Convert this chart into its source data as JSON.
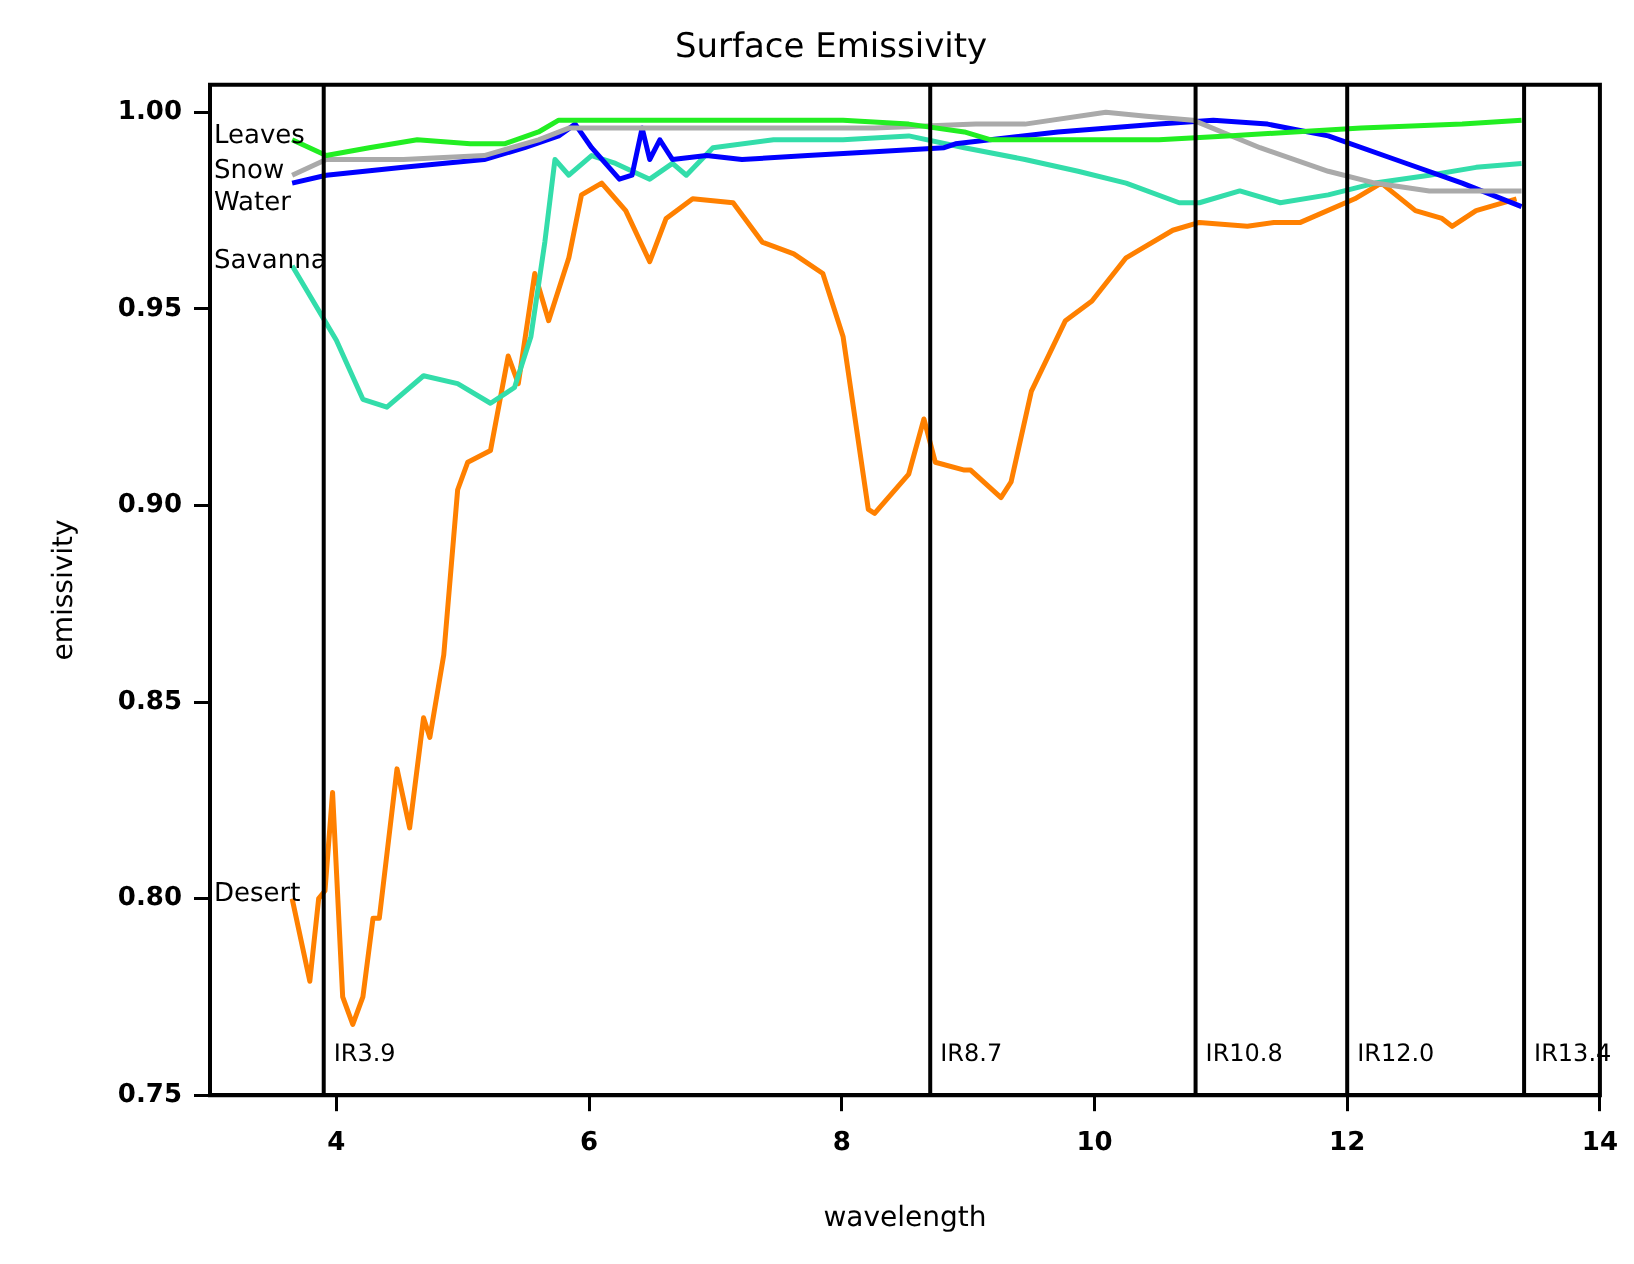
{
  "chart_data": {
    "type": "line",
    "title": "Surface Emissivity",
    "xlabel": "wavelength",
    "ylabel": "emissivity",
    "xlim": [
      3,
      14
    ],
    "xticks": [
      4,
      6,
      8,
      10,
      12,
      14
    ],
    "ylim": [
      0.75,
      1.007
    ],
    "yticks": [
      {
        "value": 0.75,
        "label": "0.75"
      },
      {
        "value": 0.8,
        "label": "0.80"
      },
      {
        "value": 0.85,
        "label": "0.85"
      },
      {
        "value": 0.9,
        "label": "0.90"
      },
      {
        "value": 0.95,
        "label": "0.95"
      },
      {
        "value": 1.0,
        "label": "1.00"
      }
    ],
    "grid": false,
    "legend": false,
    "marker": "none",
    "line_style": "solid",
    "series": [
      {
        "name": "Leaves",
        "color": "#22ee22",
        "x": [
          3.65,
          3.92,
          4.26,
          4.64,
          5.06,
          5.33,
          5.6,
          5.76,
          6.13,
          6.66,
          7.46,
          8.01,
          8.53,
          8.97,
          9.18,
          9.98,
          10.51,
          11.05,
          11.58,
          12.11,
          12.91,
          13.38
        ],
        "values": [
          0.993,
          0.989,
          0.991,
          0.993,
          0.992,
          0.992,
          0.995,
          0.998,
          0.998,
          0.998,
          0.998,
          0.998,
          0.997,
          0.995,
          0.993,
          0.993,
          0.993,
          0.994,
          0.995,
          0.996,
          0.997,
          0.998
        ]
      },
      {
        "name": "Snow",
        "color": "#aaaaaa",
        "x": [
          3.65,
          3.92,
          4.53,
          5.17,
          5.6,
          5.84,
          6.13,
          7.21,
          8.26,
          9.06,
          9.45,
          10.09,
          10.41,
          10.78,
          11.31,
          11.85,
          12.22,
          12.65,
          13.38
        ],
        "values": [
          0.984,
          0.988,
          0.988,
          0.989,
          0.993,
          0.996,
          0.996,
          0.996,
          0.996,
          0.997,
          0.997,
          1.0,
          0.999,
          0.998,
          0.991,
          0.985,
          0.982,
          0.98,
          0.98
        ]
      },
      {
        "name": "Water",
        "color": "#0000ff",
        "x": [
          3.65,
          3.92,
          4.53,
          5.17,
          5.49,
          5.76,
          5.89,
          6.02,
          6.24,
          6.34,
          6.42,
          6.48,
          6.56,
          6.66,
          6.93,
          7.21,
          7.73,
          8.26,
          8.81,
          8.9,
          9.71,
          10.51,
          10.94,
          11.37,
          11.85,
          12.38,
          12.91,
          13.38
        ],
        "values": [
          0.982,
          0.984,
          0.986,
          0.988,
          0.991,
          0.994,
          0.997,
          0.991,
          0.983,
          0.984,
          0.996,
          0.988,
          0.993,
          0.988,
          0.989,
          0.988,
          0.989,
          0.99,
          0.991,
          0.992,
          0.995,
          0.997,
          0.998,
          0.997,
          0.994,
          0.988,
          0.982,
          0.976
        ]
      },
      {
        "name": "Savanna",
        "color": "#33ddaa",
        "x": [
          3.65,
          4.0,
          4.21,
          4.4,
          4.69,
          4.96,
          5.22,
          5.41,
          5.54,
          5.65,
          5.73,
          5.84,
          6.02,
          6.21,
          6.48,
          6.66,
          6.77,
          6.98,
          7.46,
          8.01,
          8.53,
          8.97,
          9.45,
          9.87,
          10.25,
          10.67,
          10.83,
          11.15,
          11.47,
          11.85,
          12.22,
          12.65,
          13.02,
          13.38
        ],
        "values": [
          0.961,
          0.942,
          0.927,
          0.925,
          0.933,
          0.931,
          0.926,
          0.93,
          0.943,
          0.967,
          0.988,
          0.984,
          0.989,
          0.987,
          0.983,
          0.987,
          0.984,
          0.991,
          0.993,
          0.993,
          0.994,
          0.991,
          0.988,
          0.985,
          0.982,
          0.977,
          0.977,
          0.98,
          0.977,
          0.979,
          0.982,
          0.984,
          0.986,
          0.987
        ]
      },
      {
        "name": "Desert",
        "color": "#ff8000",
        "x": [
          3.65,
          3.79,
          3.86,
          3.91,
          3.97,
          4.05,
          4.13,
          4.21,
          4.29,
          4.34,
          4.48,
          4.58,
          4.69,
          4.74,
          4.85,
          4.96,
          5.04,
          5.22,
          5.36,
          5.44,
          5.57,
          5.68,
          5.84,
          5.94,
          6.1,
          6.29,
          6.48,
          6.61,
          6.82,
          7.14,
          7.37,
          7.62,
          7.85,
          8.01,
          8.21,
          8.26,
          8.53,
          8.65,
          8.74,
          8.97,
          9.02,
          9.26,
          9.34,
          9.5,
          9.77,
          9.98,
          10.25,
          10.62,
          10.83,
          11.21,
          11.42,
          11.63,
          12.06,
          12.27,
          12.54,
          12.75,
          12.83,
          13.02,
          13.34
        ],
        "values": [
          0.8,
          0.779,
          0.8,
          0.802,
          0.827,
          0.775,
          0.768,
          0.775,
          0.795,
          0.795,
          0.833,
          0.818,
          0.846,
          0.841,
          0.862,
          0.904,
          0.911,
          0.914,
          0.938,
          0.931,
          0.959,
          0.947,
          0.963,
          0.979,
          0.982,
          0.975,
          0.962,
          0.973,
          0.978,
          0.977,
          0.967,
          0.964,
          0.959,
          0.943,
          0.899,
          0.898,
          0.908,
          0.922,
          0.911,
          0.909,
          0.909,
          0.902,
          0.906,
          0.929,
          0.947,
          0.952,
          0.963,
          0.97,
          0.972,
          0.971,
          0.972,
          0.972,
          0.978,
          0.982,
          0.975,
          0.973,
          0.971,
          0.975,
          0.978
        ]
      }
    ],
    "ref_lines": [
      {
        "axis": "x",
        "value": 3.9,
        "label": "IR3.9",
        "color": "#000000"
      },
      {
        "axis": "x",
        "value": 8.7,
        "label": "IR8.7",
        "color": "#000000"
      },
      {
        "axis": "x",
        "value": 10.8,
        "label": "IR10.8",
        "color": "#000000"
      },
      {
        "axis": "x",
        "value": 12.0,
        "label": "IR12.0",
        "color": "#000000"
      },
      {
        "axis": "x",
        "value": 13.4,
        "label": "IR13.4",
        "color": "#000000"
      }
    ]
  }
}
